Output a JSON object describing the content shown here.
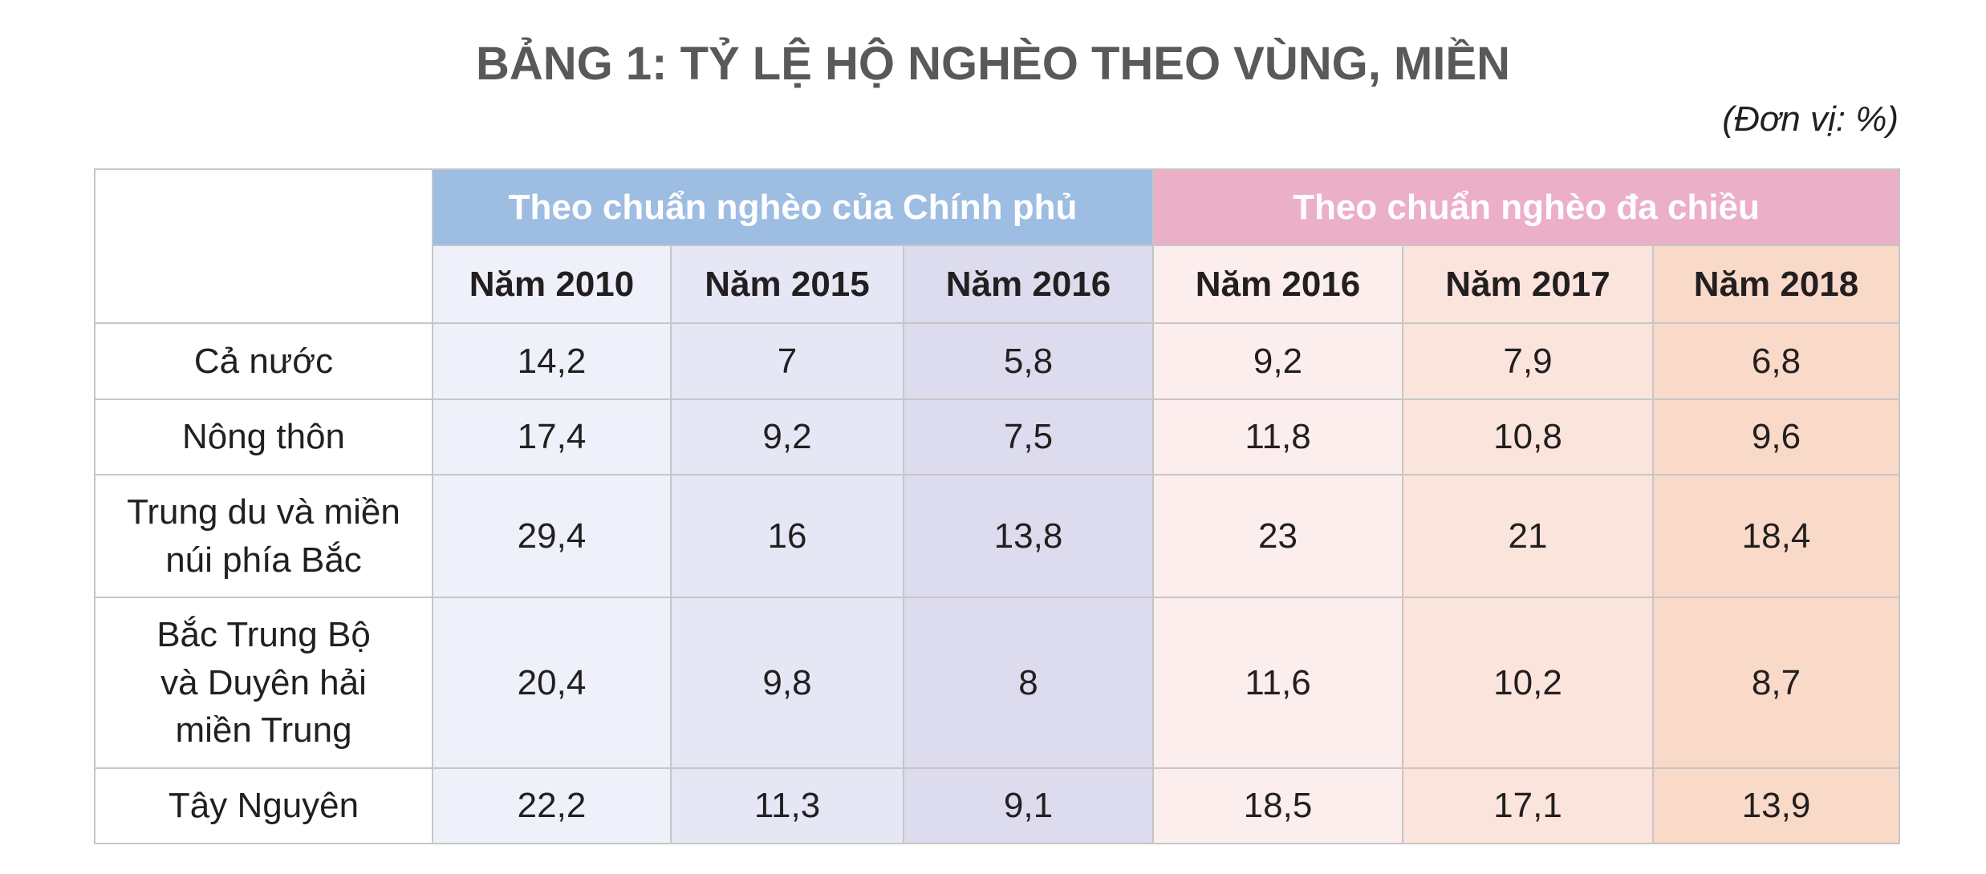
{
  "title": "BẢNG 1: TỶ LỆ HỘ NGHÈO THEO VÙNG, MIỀN",
  "unit": "(Đơn vị: %)",
  "table": {
    "groups": [
      "Theo chuẩn nghèo của Chính phủ",
      "Theo chuẩn nghèo đa chiều"
    ],
    "columns": [
      "Năm 2010",
      "Năm 2015",
      "Năm 2016",
      "Năm 2016",
      "Năm 2017",
      "Năm 2018"
    ],
    "rows": [
      [
        "Cả nước",
        "14,2",
        "7",
        "5,8",
        "9,2",
        "7,9",
        "6,8"
      ],
      [
        "Nông thôn",
        "17,4",
        "9,2",
        "7,5",
        "11,8",
        "10,8",
        "9,6"
      ],
      [
        "Trung du và miền\nnúi phía Bắc",
        "29,4",
        "16",
        "13,8",
        "23",
        "21",
        "18,4"
      ],
      [
        "Bắc Trung Bộ\nvà Duyên hải\nmiền Trung",
        "20,4",
        "9,8",
        "8",
        "11,6",
        "10,2",
        "8,7"
      ],
      [
        "Tây Nguyên",
        "22,2",
        "11,3",
        "9,1",
        "18,5",
        "17,1",
        "13,9"
      ]
    ]
  }
}
